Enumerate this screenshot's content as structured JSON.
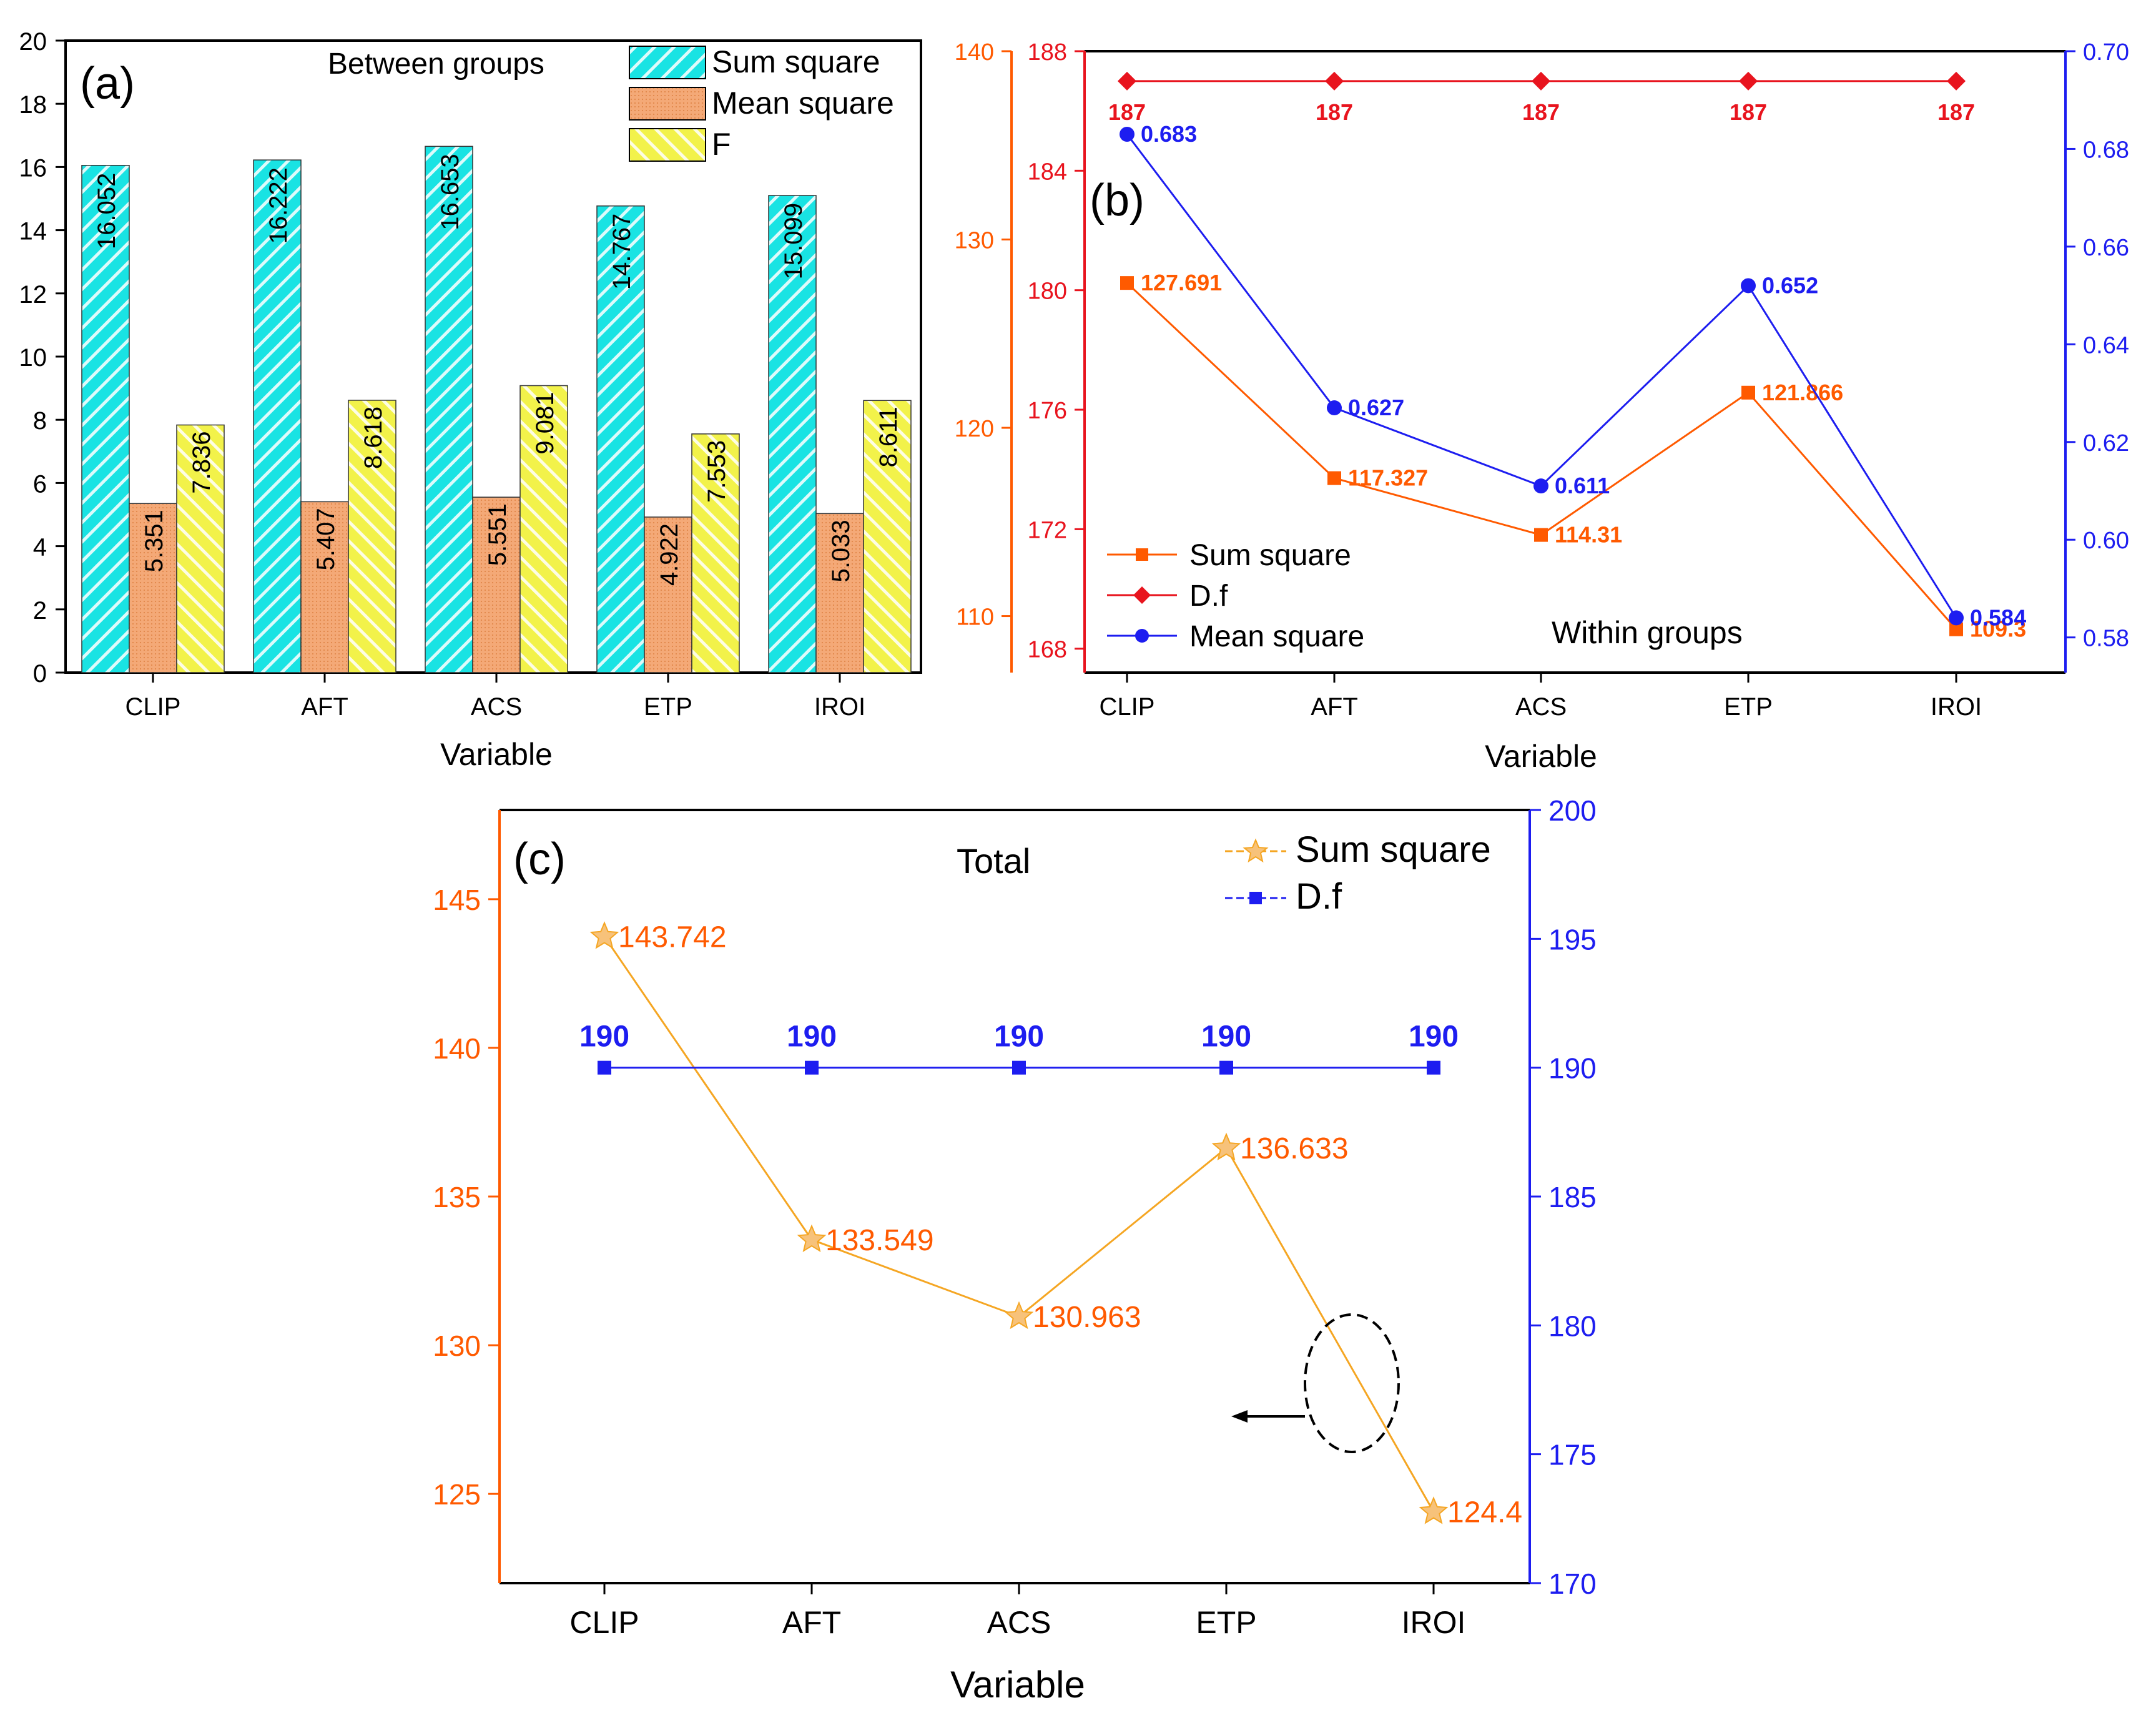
{
  "colors": {
    "cyan": "#19e3e3",
    "peach": "#f4a977",
    "yellow": "#f2f24a",
    "orange": "#ff5a00",
    "orange_light": "#f5a623",
    "red": "#e8141e",
    "blue": "#1d1df0",
    "axis": "#000000"
  },
  "chart_data": [
    {
      "panel_label": "(a)",
      "type": "bar",
      "title": "Between groups",
      "xlabel": "Variable",
      "ylabel": "",
      "ylim": [
        0,
        20
      ],
      "yticks": [
        "0",
        "2",
        "4",
        "6",
        "8",
        "10",
        "12",
        "14",
        "16",
        "18",
        "20"
      ],
      "categories": [
        "CLIP",
        "AFT",
        "ACS",
        "ETP",
        "IROI"
      ],
      "legend_position": "top-right",
      "series": [
        {
          "name": "Sum square",
          "values": [
            16.052,
            16.222,
            16.653,
            14.767,
            15.099
          ],
          "labels": [
            "16.052",
            "16.222",
            "16.653",
            "14.767",
            "15.099"
          ]
        },
        {
          "name": "Mean square",
          "values": [
            5.351,
            5.407,
            5.551,
            4.922,
            5.033
          ],
          "labels": [
            "5.351",
            "5.407",
            "5.551",
            "4.922",
            "5.033"
          ]
        },
        {
          "name": "F",
          "values": [
            7.836,
            8.618,
            9.081,
            7.553,
            8.611
          ],
          "labels": [
            "7.836",
            "8.618",
            "9.081",
            "7.553",
            "8.611"
          ]
        }
      ]
    },
    {
      "panel_label": "(b)",
      "type": "line",
      "title": "Within groups",
      "xlabel": "Variable",
      "categories": [
        "CLIP",
        "AFT",
        "ACS",
        "ETP",
        "IROI"
      ],
      "legend_position": "bottom-left",
      "axes": {
        "left_outer": {
          "ylim": [
            107,
            140
          ],
          "ticks": [
            "110",
            "120",
            "130",
            "140"
          ]
        },
        "left_inner": {
          "ylim": [
            167.2,
            188
          ],
          "ticks": [
            "168",
            "172",
            "176",
            "180",
            "184",
            "188"
          ]
        },
        "right": {
          "ylim": [
            0.5728,
            0.7
          ],
          "ticks": [
            "0.58",
            "0.60",
            "0.62",
            "0.64",
            "0.66",
            "0.68",
            "0.70"
          ]
        }
      },
      "series": [
        {
          "name": "Sum square",
          "axis": "left_outer",
          "values": [
            127.691,
            117.327,
            114.31,
            121.866,
            109.3
          ],
          "labels": [
            "127.691",
            "117.327",
            "114.31",
            "121.866",
            "109.3"
          ]
        },
        {
          "name": "D.f",
          "axis": "left_inner",
          "values": [
            187,
            187,
            187,
            187,
            187
          ],
          "labels": [
            "187",
            "187",
            "187",
            "187",
            "187"
          ]
        },
        {
          "name": "Mean square",
          "axis": "right",
          "values": [
            0.683,
            0.627,
            0.611,
            0.652,
            0.584
          ],
          "labels": [
            "0.683",
            "0.627",
            "0.611",
            "0.652",
            "0.584"
          ]
        }
      ]
    },
    {
      "panel_label": "(c)",
      "type": "line",
      "title": "Total",
      "xlabel": "Variable",
      "categories": [
        "CLIP",
        "AFT",
        "ACS",
        "ETP",
        "IROI"
      ],
      "legend_position": "top-right",
      "axes": {
        "left": {
          "ylim": [
            122,
            148
          ],
          "ticks": [
            "125",
            "130",
            "135",
            "140",
            "145"
          ]
        },
        "right": {
          "ylim": [
            170,
            200
          ],
          "ticks": [
            "170",
            "175",
            "180",
            "185",
            "190",
            "195",
            "200"
          ]
        }
      },
      "series": [
        {
          "name": "Sum square",
          "axis": "left",
          "values": [
            143.742,
            133.549,
            130.963,
            136.633,
            124.4
          ],
          "labels": [
            "143.742",
            "133.549",
            "130.963",
            "136.633",
            "124.4"
          ]
        },
        {
          "name": "D.f",
          "axis": "right",
          "values": [
            190,
            190,
            190,
            190,
            190
          ],
          "labels": [
            "190",
            "190",
            "190",
            "190",
            "190"
          ]
        }
      ]
    }
  ]
}
